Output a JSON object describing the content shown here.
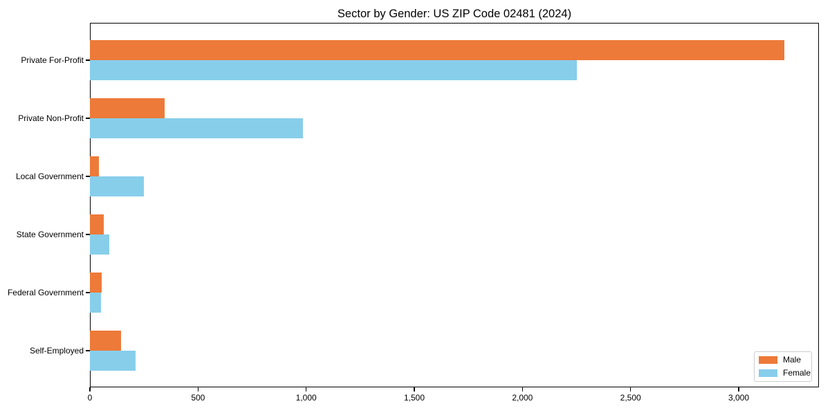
{
  "chart_data": {
    "type": "bar",
    "orientation": "horizontal",
    "title": "Sector by Gender: US ZIP Code 02481 (2024)",
    "categories": [
      "Private For-Profit",
      "Private Non-Profit",
      "Local Government",
      "State Government",
      "Federal Government",
      "Self-Employed"
    ],
    "series": [
      {
        "name": "Male",
        "color": "#ed7a39",
        "values": [
          3210,
          345,
          40,
          65,
          55,
          145
        ]
      },
      {
        "name": "Female",
        "color": "#87ceeb",
        "values": [
          2250,
          985,
          250,
          90,
          50,
          210
        ]
      }
    ],
    "xlabel": "",
    "ylabel": "",
    "xlim": [
      0,
      3371
    ],
    "xticks": [
      0,
      500,
      1000,
      1500,
      2000,
      2500,
      3000
    ],
    "xtick_labels": [
      "0",
      "500",
      "1,000",
      "1,500",
      "2,000",
      "2,500",
      "3,000"
    ],
    "grid": false,
    "legend_position": "lower-right"
  },
  "colors": {
    "male_bar": "#ed7a39",
    "female_bar": "#87ceeb",
    "axis_frame": "#000000",
    "text": "#000000",
    "legend_border": "#cccccc",
    "background": "#ffffff"
  }
}
